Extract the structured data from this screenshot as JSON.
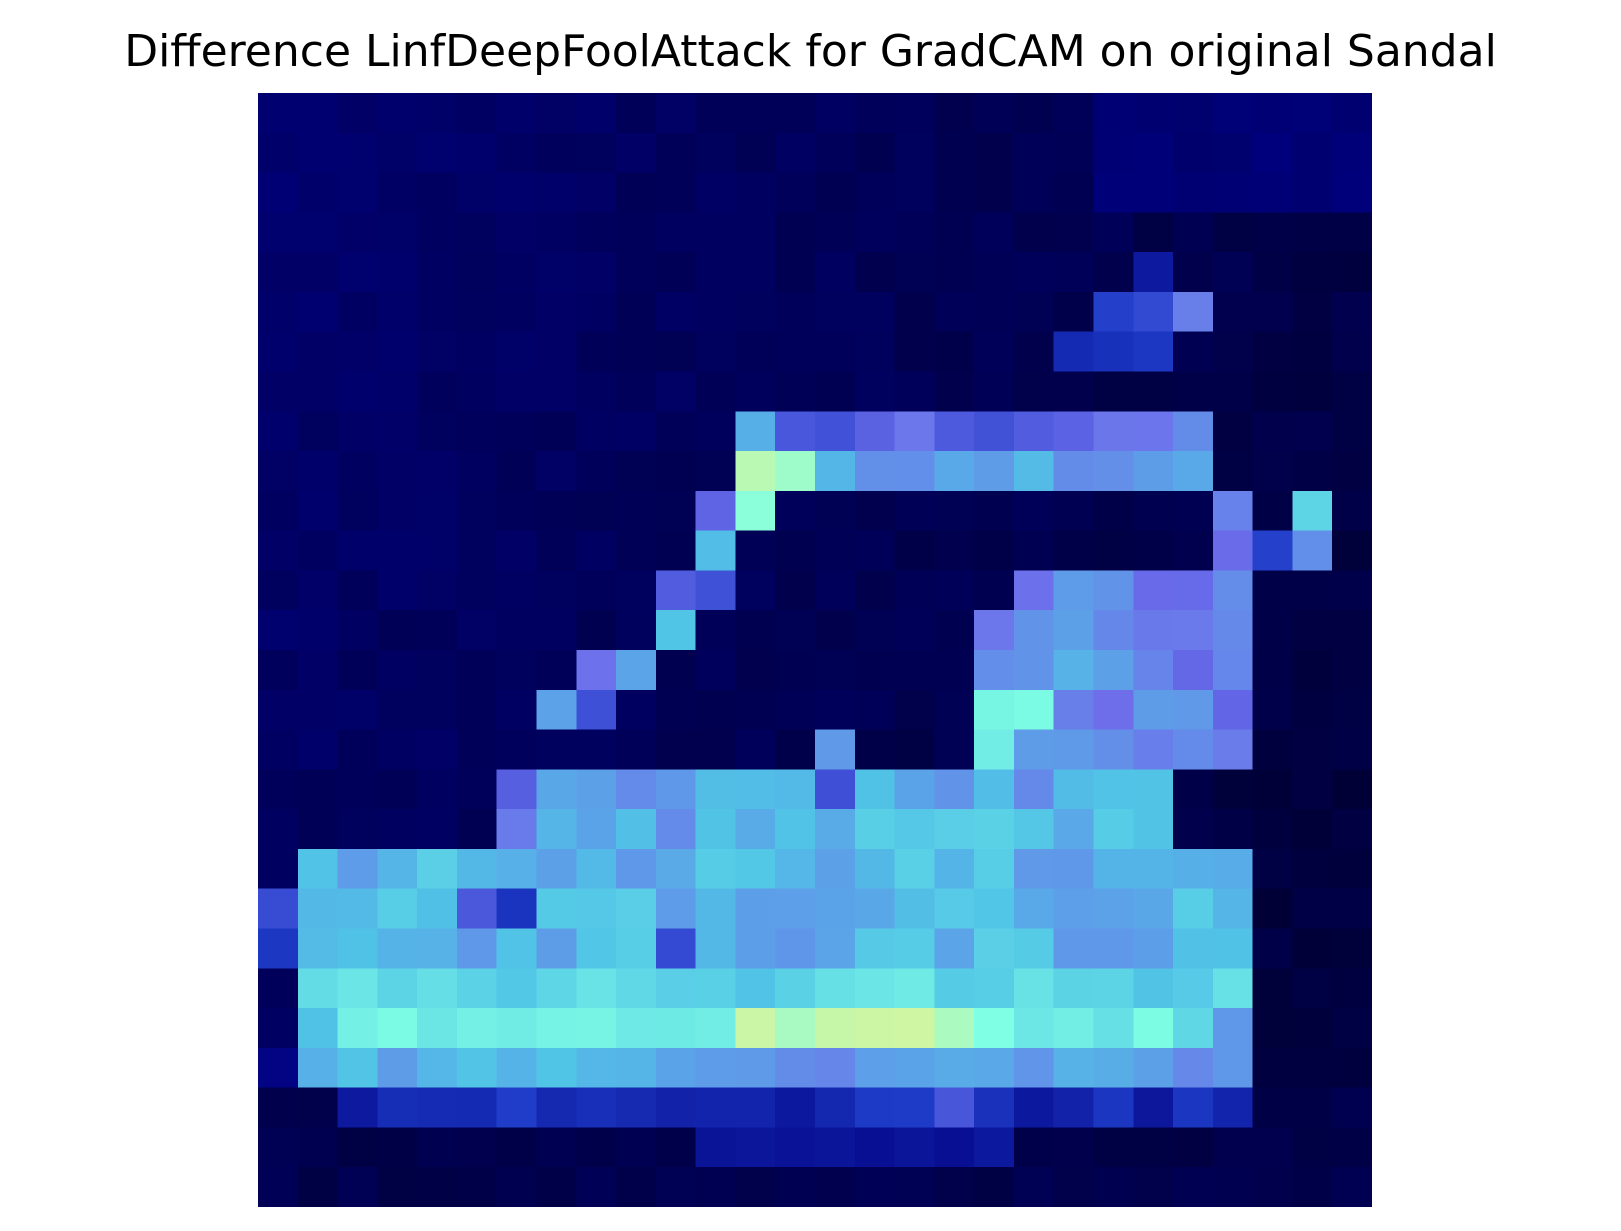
{
  "figure": {
    "title": "Difference LinfDeepFoolAttack for GradCAM on original Sandal"
  },
  "image": {
    "description": "28x28 heatmap overlay of a sandal silhouette",
    "colormap": [
      "#000033",
      "#000080",
      "#2a3ccc",
      "#7070ee",
      "#4fc3e8",
      "#7fffe4",
      "#d8f59a"
    ]
  }
}
